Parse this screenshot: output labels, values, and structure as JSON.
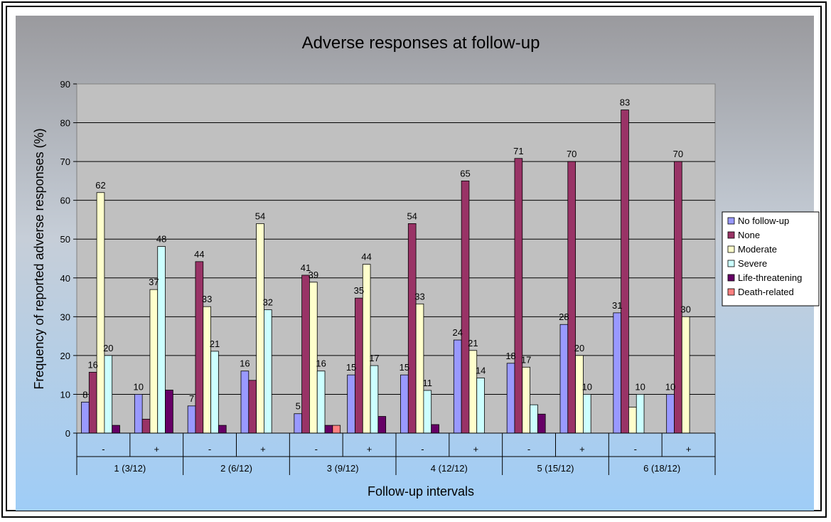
{
  "chart_data": {
    "type": "bar",
    "title": "Adverse responses at follow-up",
    "xlabel": "Follow-up intervals",
    "ylabel": "Frequency of reported adverse responses (%)",
    "ylim": [
      0,
      90
    ],
    "yticks": [
      "0",
      "10",
      "20",
      "30",
      "40",
      "50",
      "60",
      "70",
      "80",
      "90"
    ],
    "grid": true,
    "legend_position": "right",
    "groups": [
      "1 (3/12)",
      "2 (6/12)",
      "3 (9/12)",
      "4 (12/12)",
      "5 (15/12)",
      "6 (18/12)"
    ],
    "categories": [
      "-",
      "+",
      "-",
      "+",
      "-",
      "+",
      "-",
      "+",
      "-",
      "+",
      "-",
      "+"
    ],
    "series": [
      {
        "name": "No follow-up",
        "color": "#9999ff",
        "values": [
          8,
          10,
          7,
          16,
          5,
          15,
          15,
          24,
          18,
          28,
          31,
          10
        ],
        "labels": [
          "8",
          "10",
          "7",
          "16",
          "5",
          "15",
          "15",
          "24",
          "18",
          "28",
          "31",
          "10"
        ]
      },
      {
        "name": "None",
        "color": "#993366",
        "values": [
          15.7,
          3.6,
          44.2,
          13.6,
          40.7,
          34.8,
          54,
          65,
          70.8,
          70,
          83.3,
          70
        ],
        "labels": [
          "16",
          "",
          "44",
          "",
          "41",
          "35",
          "54",
          "65",
          "71",
          "70",
          "83",
          "70"
        ]
      },
      {
        "name": "Moderate",
        "color": "#ffffcc",
        "values": [
          62,
          37,
          32.6,
          54,
          38.9,
          43.5,
          33.3,
          21.3,
          17,
          20,
          6.7,
          30
        ],
        "labels": [
          "62",
          "37",
          "33",
          "54",
          "39",
          "44",
          "33",
          "21",
          "17",
          "20",
          "",
          "30"
        ]
      },
      {
        "name": "Severe",
        "color": "#ccffff",
        "values": [
          20,
          48.1,
          21.1,
          31.8,
          16,
          17.4,
          11,
          14.2,
          7.3,
          10,
          10,
          0
        ],
        "labels": [
          "20",
          "48",
          "21",
          "32",
          "16",
          "17",
          "11",
          "14",
          "",
          "10",
          "10",
          ""
        ]
      },
      {
        "name": "Life-threatening",
        "color": "#660066",
        "values": [
          2,
          11.1,
          2,
          0,
          2,
          4.3,
          2.2,
          0,
          4.9,
          0,
          0,
          0
        ],
        "labels": [
          "",
          "",
          "",
          "",
          "",
          "",
          "",
          "",
          "",
          "",
          "",
          ""
        ]
      },
      {
        "name": "Death-related",
        "color": "#ff8080",
        "values": [
          0,
          0,
          0,
          0,
          2,
          0,
          0,
          0,
          0,
          0,
          0,
          0
        ],
        "labels": [
          "",
          "",
          "",
          "",
          "",
          "",
          "",
          "",
          "",
          "",
          "",
          ""
        ]
      }
    ]
  }
}
